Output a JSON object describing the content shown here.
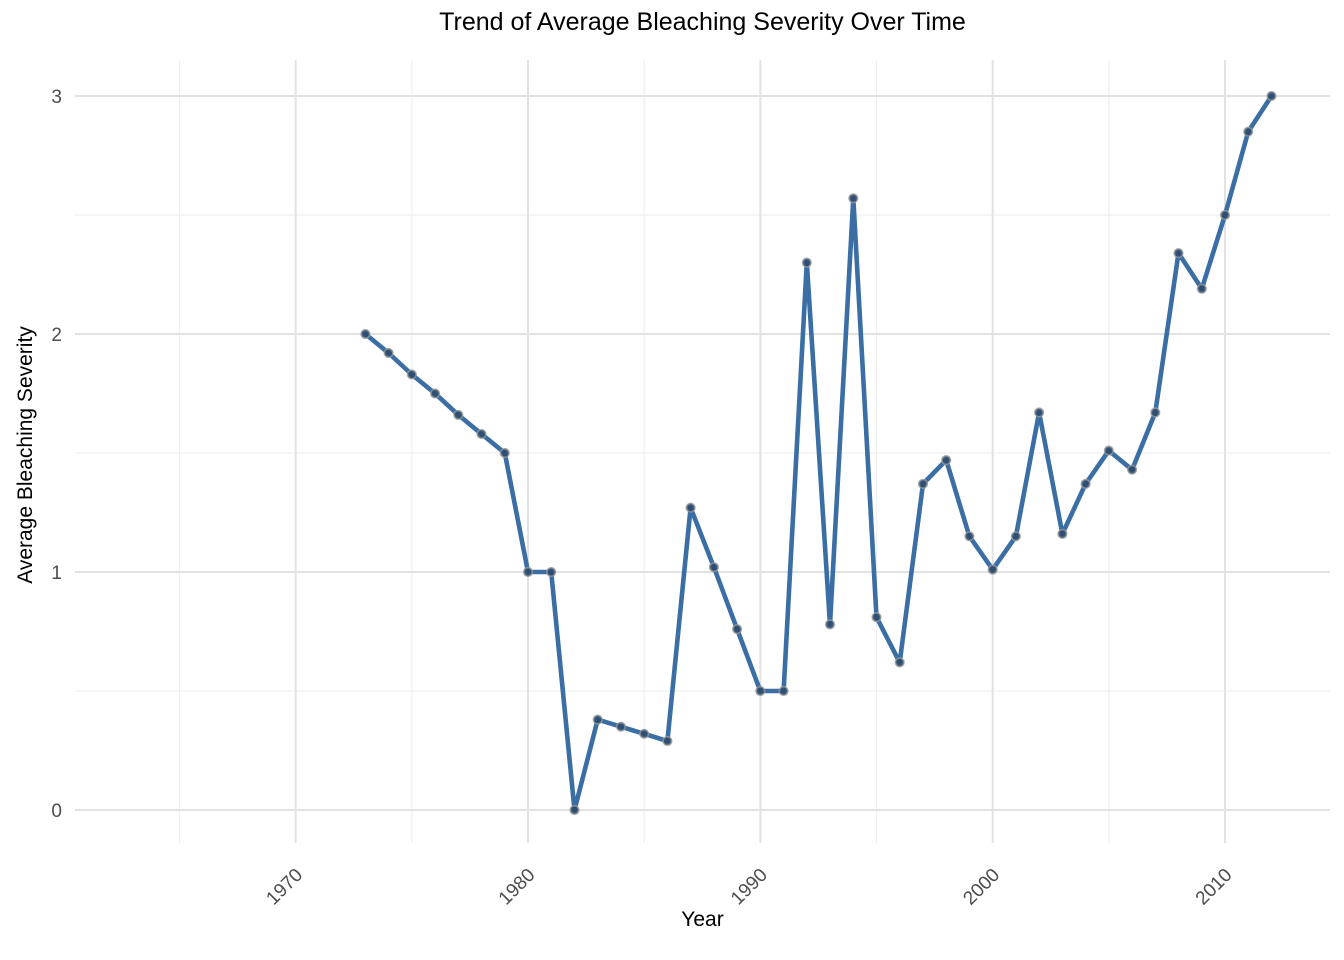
{
  "title": "Trend of Average Bleaching Severity Over Time",
  "chart_data": {
    "type": "line",
    "title": "Trend of Average Bleaching Severity Over Time",
    "xlabel": "Year",
    "ylabel": "Average Bleaching Severity",
    "legend": false,
    "grid": true,
    "xlim": [
      1960.5,
      2014.6
    ],
    "ylim": [
      -0.14,
      3.15
    ],
    "x_major_ticks": [
      1970,
      1980,
      1990,
      2000,
      2010
    ],
    "x_minor_ticks": [
      1965,
      1975,
      1985,
      1995,
      2005
    ],
    "y_major_ticks": [
      0,
      1,
      2,
      3
    ],
    "y_minor_ticks": [
      0.5,
      1.5,
      2.5
    ],
    "series": [
      {
        "name": "Average Bleaching Severity",
        "x": [
          1973,
          1974,
          1975,
          1976,
          1977,
          1978,
          1979,
          1980,
          1981,
          1982,
          1983,
          1984,
          1985,
          1986,
          1987,
          1988,
          1989,
          1990,
          1991,
          1992,
          1993,
          1994,
          1995,
          1996,
          1997,
          1998,
          1999,
          2000,
          2001,
          2002,
          2003,
          2004,
          2005,
          2006,
          2007,
          2008,
          2009,
          2010,
          2011,
          2012
        ],
        "y": [
          2.0,
          1.92,
          1.83,
          1.75,
          1.66,
          1.58,
          1.5,
          1.0,
          1.0,
          0.0,
          0.38,
          0.35,
          0.32,
          0.29,
          1.27,
          1.02,
          0.76,
          0.5,
          0.5,
          2.3,
          0.78,
          2.57,
          0.81,
          0.62,
          1.37,
          1.47,
          1.15,
          1.01,
          1.15,
          1.67,
          1.16,
          1.37,
          1.51,
          1.43,
          1.67,
          2.34,
          2.19,
          2.5,
          2.85,
          3.0
        ]
      }
    ],
    "colors": {
      "line": "#3a6ea5",
      "point_fill": "#2c4b6e",
      "point_stroke": "#999999",
      "grid_major": "#e2e2e2",
      "grid_minor": "#efefef",
      "tick_label": "#4d4d4d",
      "title_text": "#000000"
    }
  }
}
